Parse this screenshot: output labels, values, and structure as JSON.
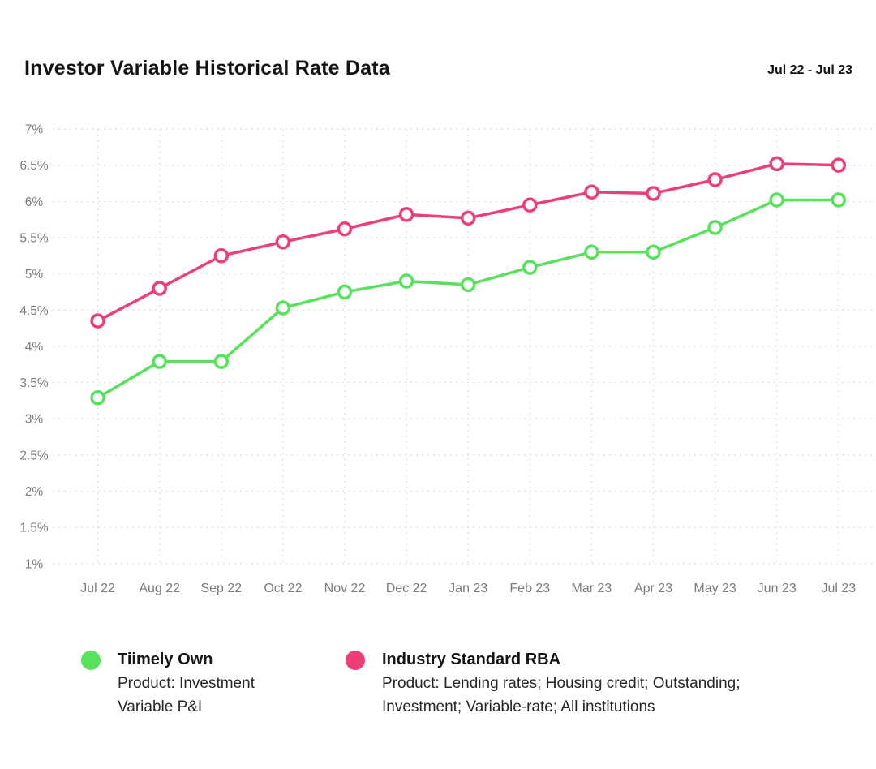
{
  "header": {
    "title": "Investor Variable Historical Rate Data",
    "period": "Jul 22 - Jul 23"
  },
  "chart_data": {
    "type": "line",
    "title": "Investor Variable Historical Rate Data",
    "categories": [
      "Jul 22",
      "Aug 22",
      "Sep 22",
      "Oct 22",
      "Nov 22",
      "Dec 22",
      "Jan 23",
      "Feb 23",
      "Mar 23",
      "Apr 23",
      "May 23",
      "Jun 23",
      "Jul 23"
    ],
    "series": [
      {
        "name": "Tiimely Own",
        "description": "Product: Investment\nVariable P&I",
        "color": "#57E15C",
        "values": [
          3.29,
          3.79,
          3.79,
          4.53,
          4.75,
          4.9,
          4.85,
          5.09,
          5.3,
          5.3,
          5.64,
          6.02,
          6.02
        ]
      },
      {
        "name": "Industry Standard RBA",
        "description": "Product: Lending rates; Housing credit; Outstanding;\nInvestment; Variable-rate; All institutions",
        "color": "#EE3E76",
        "values": [
          4.35,
          4.8,
          5.25,
          5.44,
          5.62,
          5.82,
          5.77,
          5.95,
          6.13,
          6.11,
          6.3,
          6.52,
          6.5
        ]
      }
    ],
    "ylim": [
      1,
      7
    ],
    "ytick_step": 0.5,
    "ytick_suffix": "%",
    "xlabel": "",
    "ylabel": "",
    "grid": "dashed",
    "legend_position": "bottom",
    "marker": "open-circle"
  },
  "colors": {
    "grid": "#e1e1e1",
    "tick_label": "#7b7b7b",
    "marker_fill": "#ffffff"
  }
}
